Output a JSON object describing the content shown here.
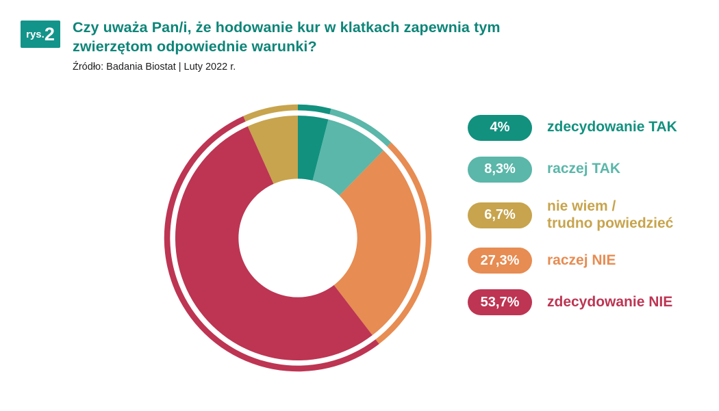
{
  "figure": {
    "label": "rys.",
    "number": "2"
  },
  "title": "Czy uważa Pan/i, że hodowanie kur w klatkach zapewnia tym zwierzętom odpowiednie warunki?",
  "source": "Źródło: Badania Biostat  |  Luty 2022 r.",
  "chart_data": {
    "type": "pie",
    "variant": "donut-with-thin-outer-ring",
    "title": "Czy uważa Pan/i, że hodowanie kur w klatkach zapewnia tym zwierzętom odpowiednie warunki?",
    "source": "Źródło: Badania Biostat | Luty 2022 r.",
    "units": "%",
    "start_angle_deg": 0,
    "direction": "clockwise",
    "categories": [
      "zdecydowanie TAK",
      "raczej TAK",
      "nie wiem / trudno powiedzieć",
      "raczej NIE",
      "zdecydowanie NIE"
    ],
    "values": [
      4,
      8.3,
      6.7,
      27.3,
      53.7
    ],
    "display_values": [
      "4%",
      "8,3%",
      "6,7%",
      "27,3%",
      "53,7%"
    ],
    "colors": [
      "#12917f",
      "#5ab7a9",
      "#c7a44d",
      "#e78c52",
      "#bd3553"
    ],
    "draw_order_clockwise_from_top": [
      0,
      1,
      3,
      4,
      2
    ],
    "legend_position": "right"
  },
  "legend": {
    "items": [
      {
        "badge": "4%",
        "lines": [
          "zdecydowanie TAK"
        ],
        "color": "#12917f"
      },
      {
        "badge": "8,3%",
        "lines": [
          "raczej TAK"
        ],
        "color": "#5ab7a9"
      },
      {
        "badge": "6,7%",
        "lines": [
          "nie wiem /",
          "trudno powiedzieć"
        ],
        "color": "#c7a44d"
      },
      {
        "badge": "27,3%",
        "lines": [
          "raczej NIE"
        ],
        "color": "#e78c52"
      },
      {
        "badge": "53,7%",
        "lines": [
          "zdecydowanie NIE"
        ],
        "color": "#bd3553"
      }
    ]
  }
}
